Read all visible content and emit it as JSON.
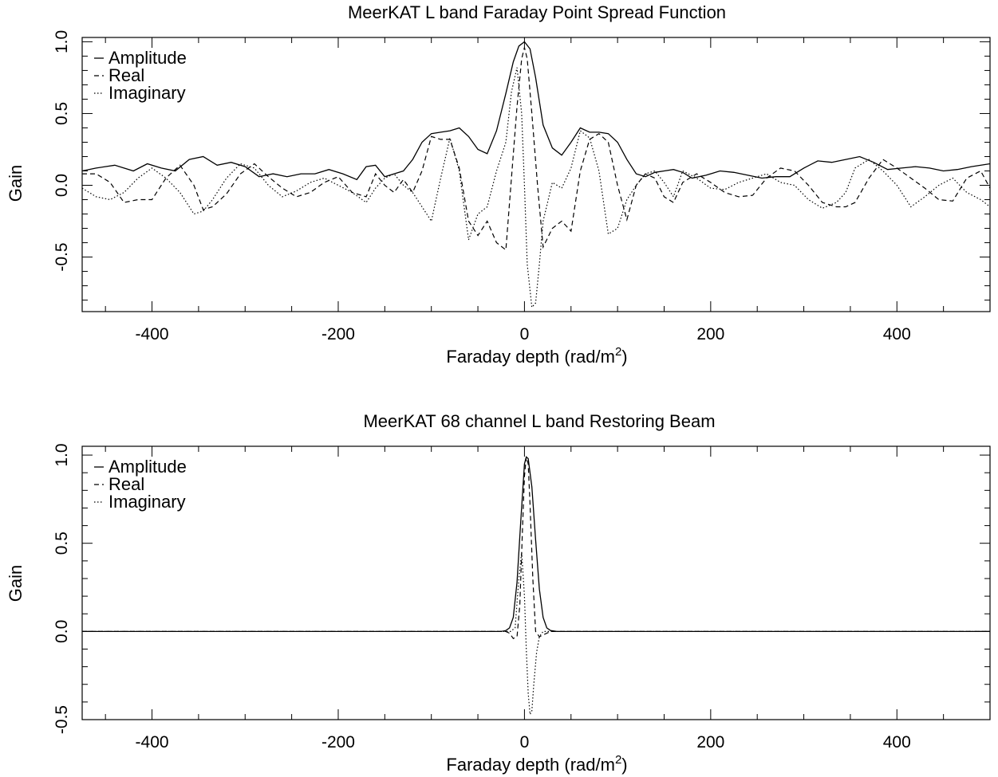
{
  "chart_data": [
    {
      "type": "line",
      "title": "MeerKAT L band Faraday Point Spread Function",
      "xlabel": "Faraday depth (rad/m",
      "xlabel_sup": "2",
      "xlabel_close": ")",
      "ylabel": "Gain",
      "xlim": [
        -475,
        500
      ],
      "ylim": [
        -0.88,
        1.03
      ],
      "xticks": [
        -400,
        -200,
        0,
        200,
        400
      ],
      "xtick_labels": [
        "-400",
        "-200",
        "0",
        "200",
        "400"
      ],
      "yticks": [
        -0.5,
        0.0,
        0.5,
        1.0
      ],
      "ytick_labels": [
        "-0.5",
        "0.0",
        "0.5",
        "1.0"
      ],
      "legend_position": "top-left",
      "series": [
        {
          "name": "Amplitude",
          "style": "solid",
          "x": [
            -475,
            -460,
            -440,
            -420,
            -405,
            -390,
            -375,
            -360,
            -345,
            -330,
            -315,
            -300,
            -285,
            -270,
            -255,
            -240,
            -225,
            -210,
            -195,
            -180,
            -170,
            -160,
            -150,
            -140,
            -130,
            -120,
            -110,
            -100,
            -90,
            -80,
            -70,
            -60,
            -50,
            -40,
            -30,
            -20,
            -12,
            -6,
            0,
            6,
            12,
            20,
            30,
            40,
            50,
            60,
            70,
            80,
            90,
            100,
            110,
            120,
            130,
            140,
            150,
            160,
            170,
            180,
            195,
            210,
            225,
            240,
            255,
            270,
            285,
            300,
            315,
            330,
            345,
            360,
            375,
            390,
            405,
            420,
            435,
            450,
            465,
            480,
            500
          ],
          "y": [
            0.1,
            0.12,
            0.14,
            0.1,
            0.15,
            0.12,
            0.1,
            0.18,
            0.2,
            0.14,
            0.16,
            0.13,
            0.06,
            0.08,
            0.06,
            0.08,
            0.08,
            0.11,
            0.08,
            0.04,
            0.13,
            0.14,
            0.06,
            0.08,
            0.1,
            0.18,
            0.3,
            0.36,
            0.37,
            0.38,
            0.4,
            0.34,
            0.25,
            0.22,
            0.38,
            0.64,
            0.86,
            0.97,
            1.0,
            0.95,
            0.75,
            0.42,
            0.26,
            0.21,
            0.3,
            0.4,
            0.37,
            0.37,
            0.36,
            0.3,
            0.18,
            0.08,
            0.06,
            0.09,
            0.1,
            0.11,
            0.09,
            0.05,
            0.07,
            0.1,
            0.09,
            0.07,
            0.05,
            0.06,
            0.06,
            0.12,
            0.17,
            0.16,
            0.18,
            0.2,
            0.16,
            0.11,
            0.12,
            0.13,
            0.12,
            0.1,
            0.11,
            0.13,
            0.15
          ]
        },
        {
          "name": "Real",
          "style": "dashed",
          "x": [
            -475,
            -460,
            -445,
            -430,
            -415,
            -400,
            -385,
            -370,
            -355,
            -345,
            -335,
            -320,
            -305,
            -290,
            -275,
            -260,
            -245,
            -230,
            -215,
            -200,
            -185,
            -170,
            -160,
            -150,
            -140,
            -130,
            -120,
            -110,
            -100,
            -90,
            -80,
            -70,
            -60,
            -50,
            -40,
            -30,
            -20,
            -14,
            -8,
            -3,
            0,
            3,
            8,
            14,
            20,
            30,
            40,
            50,
            60,
            70,
            80,
            90,
            100,
            110,
            120,
            130,
            140,
            150,
            160,
            170,
            185,
            200,
            215,
            230,
            245,
            260,
            275,
            290,
            305,
            320,
            335,
            345,
            355,
            370,
            385,
            400,
            415,
            430,
            445,
            460,
            475,
            490,
            500
          ],
          "y": [
            0.08,
            0.08,
            0.02,
            -0.12,
            -0.1,
            -0.1,
            0.05,
            0.14,
            0.0,
            -0.17,
            -0.15,
            -0.06,
            0.08,
            0.15,
            0.06,
            -0.02,
            -0.08,
            -0.05,
            0.02,
            0.06,
            -0.05,
            -0.08,
            0.08,
            0.0,
            -0.05,
            0.04,
            -0.05,
            0.1,
            0.34,
            0.32,
            0.32,
            0.12,
            -0.25,
            -0.35,
            -0.25,
            -0.4,
            -0.45,
            0.05,
            0.55,
            0.88,
            0.96,
            0.88,
            0.5,
            0.0,
            -0.43,
            -0.3,
            -0.25,
            -0.32,
            0.1,
            0.32,
            0.36,
            0.3,
            0.0,
            -0.24,
            0.0,
            0.08,
            0.05,
            -0.08,
            -0.12,
            0.02,
            0.08,
            0.02,
            -0.05,
            -0.08,
            -0.07,
            0.05,
            0.12,
            0.1,
            0.0,
            -0.12,
            -0.15,
            -0.15,
            -0.12,
            0.05,
            0.18,
            0.12,
            0.05,
            -0.02,
            -0.1,
            -0.11,
            0.05,
            0.1,
            -0.02
          ]
        },
        {
          "name": "Imaginary",
          "style": "dotted",
          "x": [
            -475,
            -460,
            -445,
            -430,
            -415,
            -400,
            -385,
            -370,
            -355,
            -345,
            -335,
            -320,
            -305,
            -290,
            -275,
            -260,
            -245,
            -230,
            -215,
            -200,
            -185,
            -170,
            -160,
            -150,
            -140,
            -130,
            -120,
            -110,
            -100,
            -90,
            -80,
            -70,
            -60,
            -50,
            -40,
            -30,
            -20,
            -14,
            -8,
            -3,
            0,
            3,
            8,
            12,
            16,
            20,
            30,
            40,
            50,
            60,
            70,
            80,
            90,
            100,
            110,
            120,
            130,
            140,
            150,
            160,
            170,
            185,
            200,
            215,
            230,
            245,
            260,
            275,
            290,
            305,
            320,
            335,
            345,
            355,
            370,
            385,
            400,
            415,
            430,
            445,
            460,
            475,
            490,
            500
          ],
          "y": [
            -0.02,
            -0.08,
            -0.1,
            -0.05,
            0.05,
            0.12,
            0.05,
            -0.05,
            -0.2,
            -0.18,
            -0.1,
            0.05,
            0.15,
            0.12,
            0.0,
            -0.08,
            -0.04,
            0.02,
            0.05,
            0.0,
            -0.05,
            -0.12,
            -0.02,
            0.05,
            0.08,
            0.0,
            -0.05,
            -0.15,
            -0.25,
            0.05,
            0.33,
            0.1,
            -0.38,
            -0.2,
            -0.15,
            0.1,
            0.3,
            0.65,
            0.82,
            0.5,
            0.0,
            -0.55,
            -0.85,
            -0.82,
            -0.55,
            -0.25,
            0.02,
            -0.02,
            0.12,
            0.38,
            0.33,
            0.1,
            -0.34,
            -0.3,
            -0.1,
            0.0,
            0.08,
            0.1,
            0.02,
            -0.08,
            0.1,
            0.05,
            -0.02,
            -0.03,
            0.02,
            0.05,
            0.08,
            0.02,
            0.0,
            -0.1,
            -0.16,
            -0.12,
            -0.05,
            0.12,
            0.18,
            0.1,
            0.0,
            -0.15,
            -0.08,
            0.0,
            0.05,
            -0.05,
            -0.1,
            -0.15
          ]
        }
      ]
    },
    {
      "type": "line",
      "title": "MeerKAT 68 channel L band Restoring Beam",
      "xlabel": "Faraday depth (rad/m",
      "xlabel_sup": "2",
      "xlabel_close": ")",
      "ylabel": "Gain",
      "xlim": [
        -475,
        500
      ],
      "ylim": [
        -0.5,
        1.05
      ],
      "xticks": [
        -400,
        -200,
        0,
        200,
        400
      ],
      "xtick_labels": [
        "-400",
        "-200",
        "0",
        "200",
        "400"
      ],
      "yticks": [
        -0.5,
        0.0,
        0.5,
        1.0
      ],
      "ytick_labels": [
        "-0.5",
        "0.0",
        "0.5",
        "1.0"
      ],
      "legend_position": "top-left",
      "series": [
        {
          "name": "Amplitude",
          "style": "solid",
          "x": [
            -475,
            -25,
            -20,
            -16,
            -12,
            -8,
            -4,
            0,
            2,
            4,
            8,
            12,
            16,
            20,
            24,
            28,
            35,
            500
          ],
          "y": [
            0.0,
            0.0,
            0.005,
            0.02,
            0.08,
            0.28,
            0.62,
            0.95,
            0.99,
            0.98,
            0.82,
            0.52,
            0.24,
            0.08,
            0.02,
            0.005,
            0.0,
            0.0
          ]
        },
        {
          "name": "Real",
          "style": "dashed",
          "x": [
            -475,
            -20,
            -16,
            -12,
            -8,
            -5,
            -2,
            0,
            2,
            4,
            6,
            9,
            12,
            16,
            20,
            24,
            28,
            35,
            500
          ],
          "y": [
            0.0,
            0.0,
            -0.01,
            -0.04,
            -0.03,
            0.15,
            0.6,
            0.88,
            0.99,
            0.95,
            0.72,
            0.3,
            0.0,
            -0.03,
            -0.02,
            -0.01,
            0.0,
            0.0,
            0.0
          ]
        },
        {
          "name": "Imaginary",
          "style": "dotted",
          "x": [
            -475,
            -15,
            -10,
            -6,
            -3,
            0,
            2,
            4,
            6,
            8,
            10,
            13,
            16,
            20,
            25,
            500
          ],
          "y": [
            0.0,
            0.0,
            0.02,
            0.3,
            0.45,
            0.2,
            -0.1,
            -0.35,
            -0.47,
            -0.45,
            -0.3,
            -0.12,
            -0.03,
            0.0,
            0.0,
            0.0
          ]
        }
      ]
    }
  ]
}
